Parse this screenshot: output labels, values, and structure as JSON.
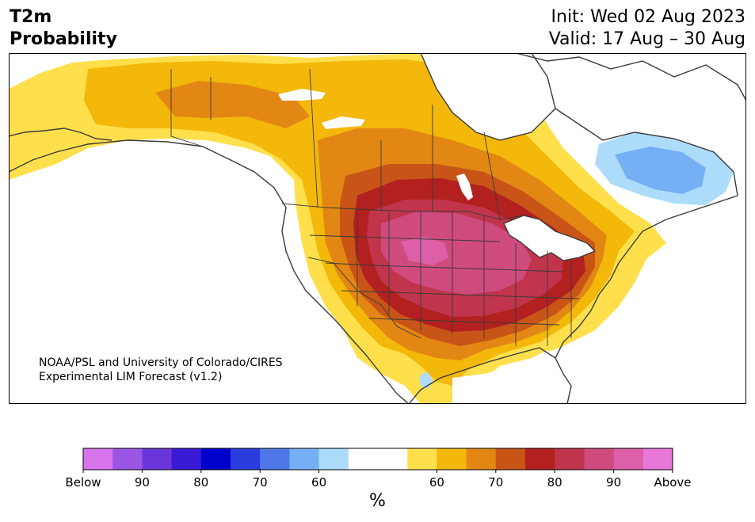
{
  "header": {
    "title_line1": "T2m",
    "title_line2": "Probability",
    "init": "Init: Wed 02 Aug 2023",
    "valid": "Valid: 17 Aug – 30 Aug"
  },
  "credit": {
    "line1": "NOAA/PSL and University of Colorado/CIRES",
    "line2": "Experimental LIM Forecast (v1.2)"
  },
  "colorbar": {
    "colors": [
      "#d874ec",
      "#9b55e4",
      "#6b36d9",
      "#3a19d4",
      "#0000cd",
      "#2a3cdc",
      "#4f77e8",
      "#76b0f4",
      "#addcfb",
      "#ffffff",
      "#ffffff",
      "#ffe04c",
      "#f3b80a",
      "#e28714",
      "#c85418",
      "#b2201f",
      "#c0344c",
      "#cf4a7d",
      "#dc5fa8",
      "#e878d8"
    ],
    "ticks": [
      "Below",
      "90",
      "80",
      "70",
      "60",
      "60",
      "70",
      "80",
      "90",
      "Above"
    ],
    "unit": "%"
  },
  "map": {
    "colors": {
      "p50": "#ffe04c",
      "p60": "#f3b80a",
      "p70": "#e28714",
      "p75": "#c85418",
      "p80": "#b2201f",
      "p85": "#c0344c",
      "p90": "#cf4a7d",
      "p95": "#dc5fa8",
      "b60": "#addcfb",
      "b70": "#76b0f4",
      "coast": "#3a3a3a",
      "water": "#ffffff"
    }
  }
}
